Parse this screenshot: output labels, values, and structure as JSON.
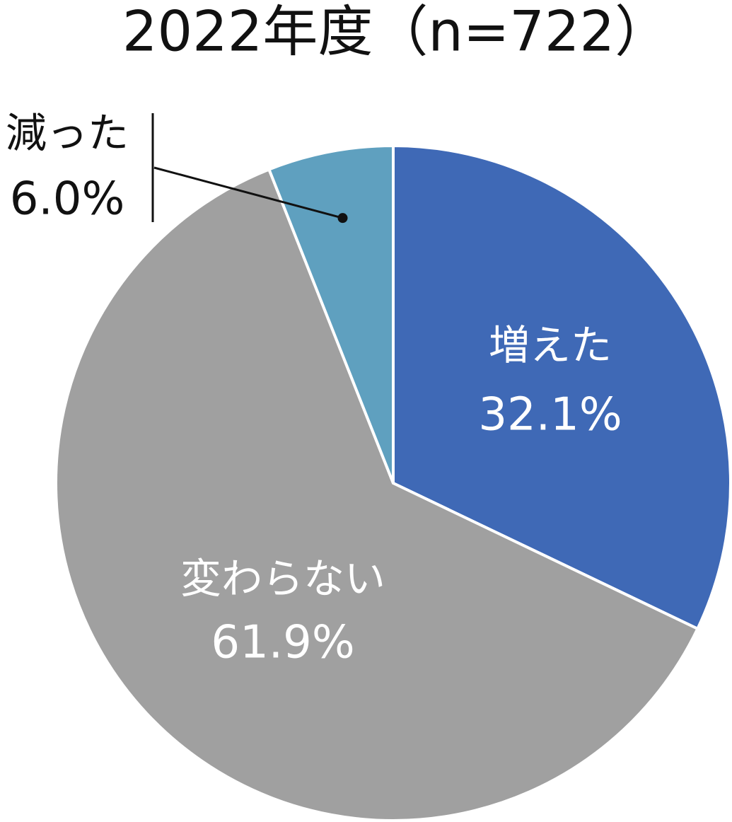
{
  "chart_data": {
    "type": "pie",
    "title": "2022年度（n=722）",
    "categories": [
      "増えた",
      "変わらない",
      "減った"
    ],
    "values": [
      32.1,
      61.9,
      6.0
    ],
    "value_labels": [
      "32.1%",
      "61.9%",
      "6.0%"
    ],
    "colors": [
      "#3f69b6",
      "#a0a0a0",
      "#5fa0bf"
    ]
  }
}
